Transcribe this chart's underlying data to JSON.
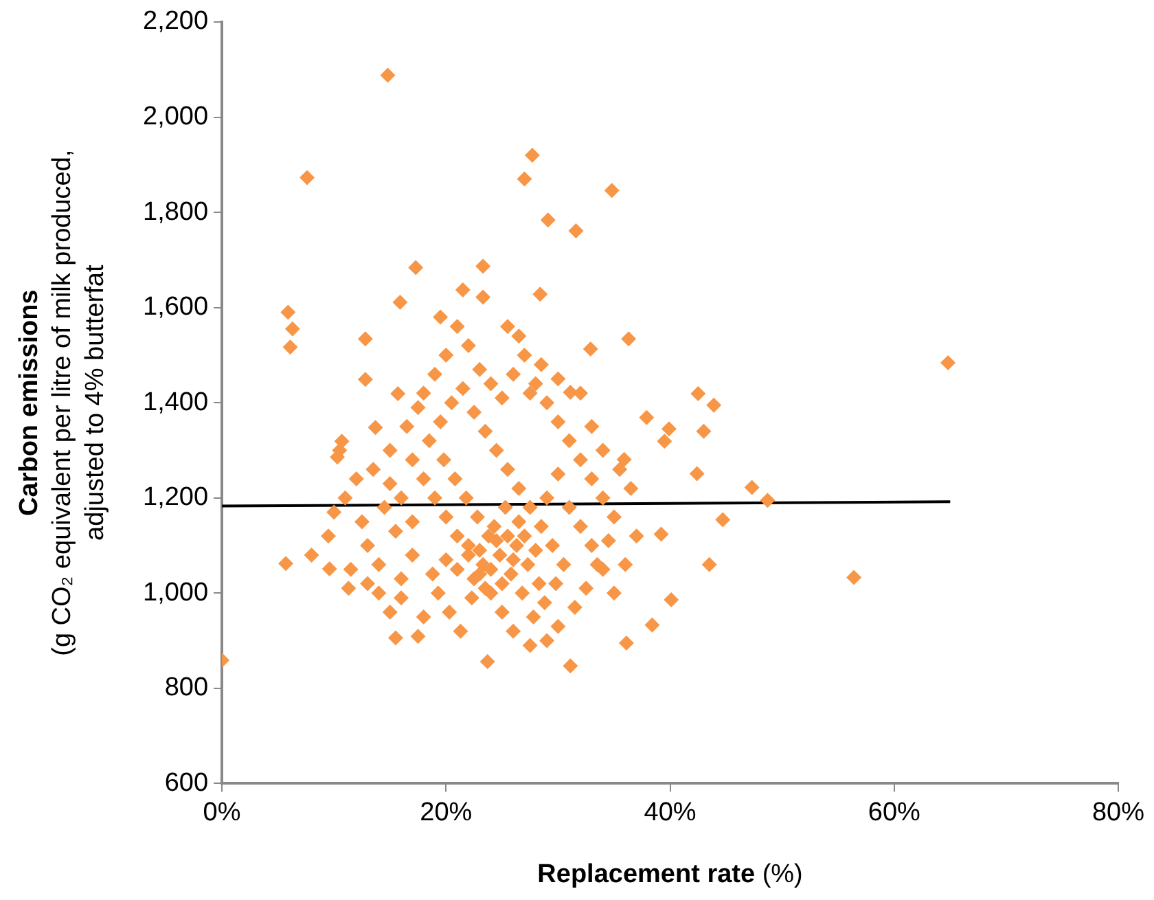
{
  "chart_data": {
    "type": "scatter",
    "xlabel": "Replacement rate (%)",
    "ylabel": "Carbon emissions\n(g CO₂ equivalent per litre of milk produced,\nadjusted to 4% butterfat",
    "xlim": [
      0,
      80
    ],
    "ylim": [
      600,
      2200
    ],
    "xticks": [
      {
        "value": 0,
        "label": "0%"
      },
      {
        "value": 20,
        "label": "20%"
      },
      {
        "value": 40,
        "label": "40%"
      },
      {
        "value": 60,
        "label": "60%"
      },
      {
        "value": 80,
        "label": "80%"
      }
    ],
    "yticks": [
      600,
      800,
      {
        "value": 1000,
        "label": "1,000"
      },
      {
        "value": 1200,
        "label": "1,200"
      },
      {
        "value": 1400,
        "label": "1,400"
      },
      {
        "value": 1600,
        "label": "1,600"
      },
      {
        "value": 1800,
        "label": "1,800"
      },
      {
        "value": 2000,
        "label": "2,000"
      },
      {
        "value": 2200,
        "label": "2,200"
      }
    ],
    "grid": false,
    "legend": false,
    "series": [
      {
        "type": "scatter",
        "marker": "diamond",
        "color": "#f79646",
        "x": [
          0,
          14.8,
          7.6,
          27.7,
          27,
          34.8,
          29.1,
          31.6,
          17.3,
          23.3,
          5.9,
          15.9,
          21.5,
          23.3,
          28.4,
          64.8,
          56.4,
          36.3,
          32.9,
          6.3,
          6.1,
          12.8,
          42.5,
          43.9,
          43,
          42.4,
          47.3,
          48.7,
          44.7,
          43.5,
          39.2,
          40.1,
          38.4,
          36.1,
          31.1,
          31.1,
          37.9,
          39.9,
          39.5,
          35.9,
          23.7,
          5.7,
          8,
          9.6,
          11.3,
          15.5,
          17.5,
          10.7,
          10.3,
          13.7,
          12.8,
          15.7,
          12,
          11,
          12.5,
          13,
          11.5,
          14,
          15,
          16,
          17,
          15.5,
          14.5,
          13.5,
          15,
          16.5,
          17.5,
          18,
          19,
          20,
          21,
          19.5,
          22,
          23,
          24,
          25,
          26,
          27,
          26.5,
          25.5,
          28,
          29,
          30,
          31,
          32,
          33,
          34,
          35,
          34.5,
          33.5,
          32.5,
          31.5,
          30,
          29,
          27.5,
          26,
          25,
          24,
          23,
          22,
          21,
          20,
          19,
          18,
          17,
          18.5,
          19.5,
          20.5,
          21.5,
          22.5,
          23.5,
          24.5,
          25.5,
          26.5,
          27.5,
          28.5,
          29.5,
          30.5,
          29.8,
          28.8,
          27.8,
          26.8,
          25.8,
          24.8,
          23.8,
          22.8,
          21.8,
          20.8,
          19.8,
          18.8,
          19.3,
          20.3,
          21.3,
          22.3,
          23.3,
          24.3,
          25.3,
          26.3,
          27.3,
          28.3,
          22,
          23,
          24,
          25,
          26,
          21,
          20,
          22.5,
          23.5,
          24.5,
          25.5,
          26.5,
          27,
          28,
          29,
          30,
          31,
          32,
          33,
          34,
          35,
          36,
          37,
          36.5,
          35.5,
          34,
          33,
          32,
          30,
          28.5,
          27.5,
          17,
          16,
          15,
          10,
          9.5,
          10.5,
          14,
          16,
          18,
          13
        ],
        "values": [
          859,
          2088,
          1873,
          1920,
          1870,
          1846,
          1784,
          1761,
          1684,
          1687,
          1590,
          1611,
          1637,
          1622,
          1628,
          1484,
          1033,
          1534,
          1513,
          1555,
          1517,
          1534,
          1419,
          1395,
          1340,
          1251,
          1222,
          1195,
          1154,
          1060,
          1124,
          986,
          933,
          895,
          847,
          1422,
          1369,
          1345,
          1319,
          1281,
          856,
          1062,
          1080,
          1051,
          1010,
          906,
          909,
          1319,
          1286,
          1348,
          1449,
          1419,
          1240,
          1200,
          1150,
          1100,
          1050,
          1000,
          960,
          1030,
          1080,
          1130,
          1180,
          1260,
          1300,
          1350,
          1390,
          1420,
          1460,
          1500,
          1560,
          1580,
          1520,
          1470,
          1440,
          1410,
          1460,
          1500,
          1540,
          1560,
          1440,
          1400,
          1360,
          1320,
          1280,
          1240,
          1200,
          1160,
          1110,
          1060,
          1010,
          970,
          930,
          900,
          890,
          920,
          960,
          1000,
          1040,
          1080,
          1120,
          1160,
          1200,
          1240,
          1280,
          1320,
          1360,
          1400,
          1430,
          1380,
          1340,
          1300,
          1260,
          1220,
          1180,
          1140,
          1100,
          1060,
          1020,
          980,
          950,
          1000,
          1040,
          1080,
          1120,
          1160,
          1200,
          1240,
          1280,
          1040,
          1000,
          960,
          920,
          990,
          1060,
          1140,
          1180,
          1100,
          1060,
          1020,
          1100,
          1090,
          1050,
          1020,
          1070,
          1050,
          1070,
          1030,
          1010,
          1110,
          1120,
          1150,
          1120,
          1090,
          1200,
          1250,
          1180,
          1140,
          1100,
          1050,
          1000,
          1060,
          1120,
          1220,
          1260,
          1300,
          1350,
          1420,
          1450,
          1480,
          1420,
          1150,
          1200,
          1230,
          1170,
          1120,
          1300,
          1060,
          990,
          950,
          1020
        ]
      },
      {
        "type": "line",
        "color": "#000000",
        "x": [
          0,
          65
        ],
        "values": [
          1183,
          1192
        ]
      }
    ]
  }
}
